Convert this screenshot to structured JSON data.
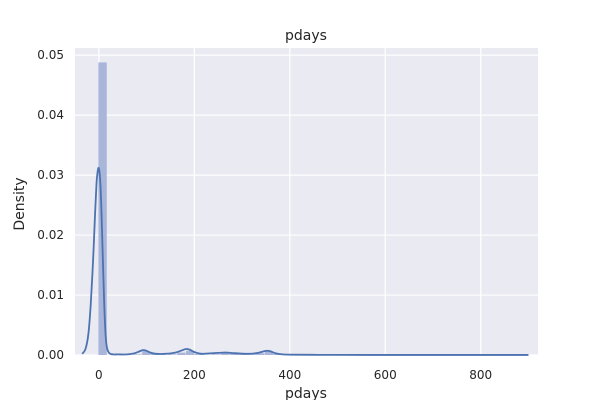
{
  "chart_data": {
    "type": "histogram",
    "title": "pdays",
    "xlabel": "pdays",
    "ylabel": "Density",
    "xlim": [
      -50,
      920
    ],
    "ylim": [
      0,
      0.0512
    ],
    "grid": true,
    "x_ticks": [
      0,
      200,
      400,
      600,
      800
    ],
    "x_tick_labels": [
      "0",
      "200",
      "400",
      "600",
      "800"
    ],
    "y_ticks": [
      0.0,
      0.01,
      0.02,
      0.03,
      0.04,
      0.05
    ],
    "y_tick_labels": [
      "0.00",
      "0.01",
      "0.02",
      "0.03",
      "0.04",
      "0.05"
    ],
    "hist_bins": {
      "edges": [
        -1.0,
        17.36,
        35.72,
        54.08,
        72.44,
        90.8,
        109.16,
        127.52,
        145.88,
        164.24,
        182.6,
        200.96,
        219.32,
        237.68,
        256.04,
        274.4,
        292.76,
        311.12,
        329.48,
        347.84,
        366.2,
        384.56,
        402.92,
        421.28,
        439.64,
        458.0,
        476.36,
        494.72,
        513.08,
        531.44,
        549.8,
        568.16,
        586.52,
        604.88,
        623.24,
        641.6,
        659.96,
        678.32,
        696.68,
        715.04,
        733.4,
        751.76,
        770.12,
        788.48,
        806.84,
        825.2,
        843.56,
        861.92,
        880.28,
        898.64
      ],
      "density": [
        0.0488,
        0.0,
        0.0,
        0.0,
        0.0001,
        0.0006,
        0.0002,
        0.0,
        0.0001,
        0.0004,
        0.0007,
        0.0002,
        0.0,
        0.0001,
        0.0003,
        0.0002,
        0.0001,
        0.0001,
        0.0003,
        0.0005,
        0.0002,
        0.0,
        0.0,
        0.0,
        0.0,
        0.0,
        0.0,
        0.0,
        0.0,
        0.0,
        0.0,
        0.0,
        0.0,
        0.0,
        0.0,
        0.0,
        0.0,
        0.0,
        0.0,
        0.0,
        0.0,
        0.0,
        0.0,
        0.0,
        0.0,
        0.0,
        0.0,
        0.0,
        0.0
      ]
    },
    "kde": {
      "x": [
        -35,
        -28,
        -22,
        -17,
        -12,
        -8,
        -5,
        -3,
        -1,
        1,
        3,
        5,
        8,
        11,
        14,
        17,
        22,
        30,
        40,
        60,
        75,
        85,
        92,
        100,
        108,
        120,
        140,
        160,
        175,
        182,
        190,
        200,
        215,
        240,
        260,
        270,
        285,
        310,
        330,
        345,
        352,
        360,
        370,
        385,
        410,
        450,
        500,
        600,
        700,
        800,
        900
      ],
      "y": [
        0.0002,
        0.001,
        0.0035,
        0.0085,
        0.016,
        0.0235,
        0.0285,
        0.0303,
        0.0312,
        0.0307,
        0.0288,
        0.025,
        0.017,
        0.009,
        0.0035,
        0.0012,
        0.0003,
        0.0001,
        0.0001,
        0.0001,
        0.0003,
        0.0006,
        0.0008,
        0.0007,
        0.0004,
        0.0002,
        0.0002,
        0.0004,
        0.0008,
        0.001,
        0.0009,
        0.0005,
        0.0002,
        0.0003,
        0.0004,
        0.0004,
        0.0003,
        0.0002,
        0.0003,
        0.0006,
        0.0007,
        0.0006,
        0.0003,
        0.0001,
        5e-05,
        3e-05,
        2e-05,
        1e-05,
        1e-05,
        1e-05,
        1e-05
      ]
    },
    "colors": {
      "background": "#eaeaf2",
      "grid": "#ffffff",
      "bar": "#a9b6d9",
      "kde_line": "#4c72b0",
      "text": "#262626"
    }
  }
}
